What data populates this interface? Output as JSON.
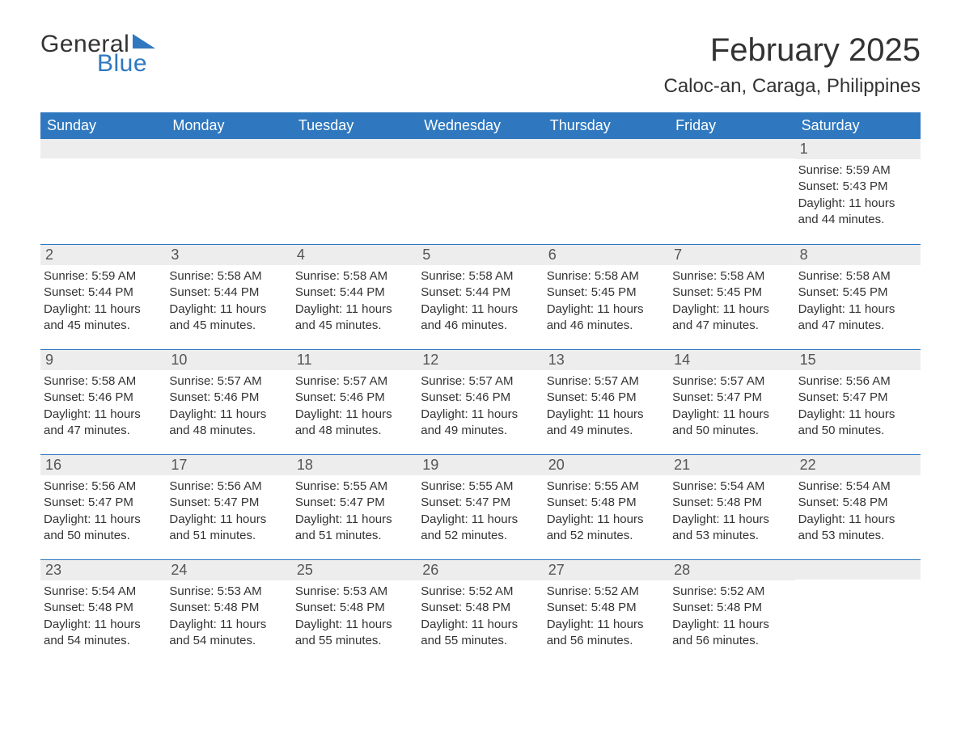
{
  "logo": {
    "general": "General",
    "blue": "Blue",
    "flag_color": "#2f78bf"
  },
  "title": "February 2025",
  "location": "Caloc-an, Caraga, Philippines",
  "colors": {
    "header_bg": "#2f78bf",
    "header_text": "#ffffff",
    "daynum_bg": "#ededed",
    "row_divider": "#2f78bf",
    "body_text": "#333333",
    "page_bg": "#ffffff"
  },
  "typography": {
    "title_fontsize": 40,
    "location_fontsize": 24,
    "dow_fontsize": 18,
    "daynum_fontsize": 18,
    "body_fontsize": 15,
    "font_family": "Arial"
  },
  "days_of_week": [
    "Sunday",
    "Monday",
    "Tuesday",
    "Wednesday",
    "Thursday",
    "Friday",
    "Saturday"
  ],
  "weeks": [
    [
      {
        "day": "",
        "sunrise": "",
        "sunset": "",
        "daylight": ""
      },
      {
        "day": "",
        "sunrise": "",
        "sunset": "",
        "daylight": ""
      },
      {
        "day": "",
        "sunrise": "",
        "sunset": "",
        "daylight": ""
      },
      {
        "day": "",
        "sunrise": "",
        "sunset": "",
        "daylight": ""
      },
      {
        "day": "",
        "sunrise": "",
        "sunset": "",
        "daylight": ""
      },
      {
        "day": "",
        "sunrise": "",
        "sunset": "",
        "daylight": ""
      },
      {
        "day": "1",
        "sunrise": "Sunrise: 5:59 AM",
        "sunset": "Sunset: 5:43 PM",
        "daylight": "Daylight: 11 hours and 44 minutes."
      }
    ],
    [
      {
        "day": "2",
        "sunrise": "Sunrise: 5:59 AM",
        "sunset": "Sunset: 5:44 PM",
        "daylight": "Daylight: 11 hours and 45 minutes."
      },
      {
        "day": "3",
        "sunrise": "Sunrise: 5:58 AM",
        "sunset": "Sunset: 5:44 PM",
        "daylight": "Daylight: 11 hours and 45 minutes."
      },
      {
        "day": "4",
        "sunrise": "Sunrise: 5:58 AM",
        "sunset": "Sunset: 5:44 PM",
        "daylight": "Daylight: 11 hours and 45 minutes."
      },
      {
        "day": "5",
        "sunrise": "Sunrise: 5:58 AM",
        "sunset": "Sunset: 5:44 PM",
        "daylight": "Daylight: 11 hours and 46 minutes."
      },
      {
        "day": "6",
        "sunrise": "Sunrise: 5:58 AM",
        "sunset": "Sunset: 5:45 PM",
        "daylight": "Daylight: 11 hours and 46 minutes."
      },
      {
        "day": "7",
        "sunrise": "Sunrise: 5:58 AM",
        "sunset": "Sunset: 5:45 PM",
        "daylight": "Daylight: 11 hours and 47 minutes."
      },
      {
        "day": "8",
        "sunrise": "Sunrise: 5:58 AM",
        "sunset": "Sunset: 5:45 PM",
        "daylight": "Daylight: 11 hours and 47 minutes."
      }
    ],
    [
      {
        "day": "9",
        "sunrise": "Sunrise: 5:58 AM",
        "sunset": "Sunset: 5:46 PM",
        "daylight": "Daylight: 11 hours and 47 minutes."
      },
      {
        "day": "10",
        "sunrise": "Sunrise: 5:57 AM",
        "sunset": "Sunset: 5:46 PM",
        "daylight": "Daylight: 11 hours and 48 minutes."
      },
      {
        "day": "11",
        "sunrise": "Sunrise: 5:57 AM",
        "sunset": "Sunset: 5:46 PM",
        "daylight": "Daylight: 11 hours and 48 minutes."
      },
      {
        "day": "12",
        "sunrise": "Sunrise: 5:57 AM",
        "sunset": "Sunset: 5:46 PM",
        "daylight": "Daylight: 11 hours and 49 minutes."
      },
      {
        "day": "13",
        "sunrise": "Sunrise: 5:57 AM",
        "sunset": "Sunset: 5:46 PM",
        "daylight": "Daylight: 11 hours and 49 minutes."
      },
      {
        "day": "14",
        "sunrise": "Sunrise: 5:57 AM",
        "sunset": "Sunset: 5:47 PM",
        "daylight": "Daylight: 11 hours and 50 minutes."
      },
      {
        "day": "15",
        "sunrise": "Sunrise: 5:56 AM",
        "sunset": "Sunset: 5:47 PM",
        "daylight": "Daylight: 11 hours and 50 minutes."
      }
    ],
    [
      {
        "day": "16",
        "sunrise": "Sunrise: 5:56 AM",
        "sunset": "Sunset: 5:47 PM",
        "daylight": "Daylight: 11 hours and 50 minutes."
      },
      {
        "day": "17",
        "sunrise": "Sunrise: 5:56 AM",
        "sunset": "Sunset: 5:47 PM",
        "daylight": "Daylight: 11 hours and 51 minutes."
      },
      {
        "day": "18",
        "sunrise": "Sunrise: 5:55 AM",
        "sunset": "Sunset: 5:47 PM",
        "daylight": "Daylight: 11 hours and 51 minutes."
      },
      {
        "day": "19",
        "sunrise": "Sunrise: 5:55 AM",
        "sunset": "Sunset: 5:47 PM",
        "daylight": "Daylight: 11 hours and 52 minutes."
      },
      {
        "day": "20",
        "sunrise": "Sunrise: 5:55 AM",
        "sunset": "Sunset: 5:48 PM",
        "daylight": "Daylight: 11 hours and 52 minutes."
      },
      {
        "day": "21",
        "sunrise": "Sunrise: 5:54 AM",
        "sunset": "Sunset: 5:48 PM",
        "daylight": "Daylight: 11 hours and 53 minutes."
      },
      {
        "day": "22",
        "sunrise": "Sunrise: 5:54 AM",
        "sunset": "Sunset: 5:48 PM",
        "daylight": "Daylight: 11 hours and 53 minutes."
      }
    ],
    [
      {
        "day": "23",
        "sunrise": "Sunrise: 5:54 AM",
        "sunset": "Sunset: 5:48 PM",
        "daylight": "Daylight: 11 hours and 54 minutes."
      },
      {
        "day": "24",
        "sunrise": "Sunrise: 5:53 AM",
        "sunset": "Sunset: 5:48 PM",
        "daylight": "Daylight: 11 hours and 54 minutes."
      },
      {
        "day": "25",
        "sunrise": "Sunrise: 5:53 AM",
        "sunset": "Sunset: 5:48 PM",
        "daylight": "Daylight: 11 hours and 55 minutes."
      },
      {
        "day": "26",
        "sunrise": "Sunrise: 5:52 AM",
        "sunset": "Sunset: 5:48 PM",
        "daylight": "Daylight: 11 hours and 55 minutes."
      },
      {
        "day": "27",
        "sunrise": "Sunrise: 5:52 AM",
        "sunset": "Sunset: 5:48 PM",
        "daylight": "Daylight: 11 hours and 56 minutes."
      },
      {
        "day": "28",
        "sunrise": "Sunrise: 5:52 AM",
        "sunset": "Sunset: 5:48 PM",
        "daylight": "Daylight: 11 hours and 56 minutes."
      },
      {
        "day": "",
        "sunrise": "",
        "sunset": "",
        "daylight": ""
      }
    ]
  ]
}
